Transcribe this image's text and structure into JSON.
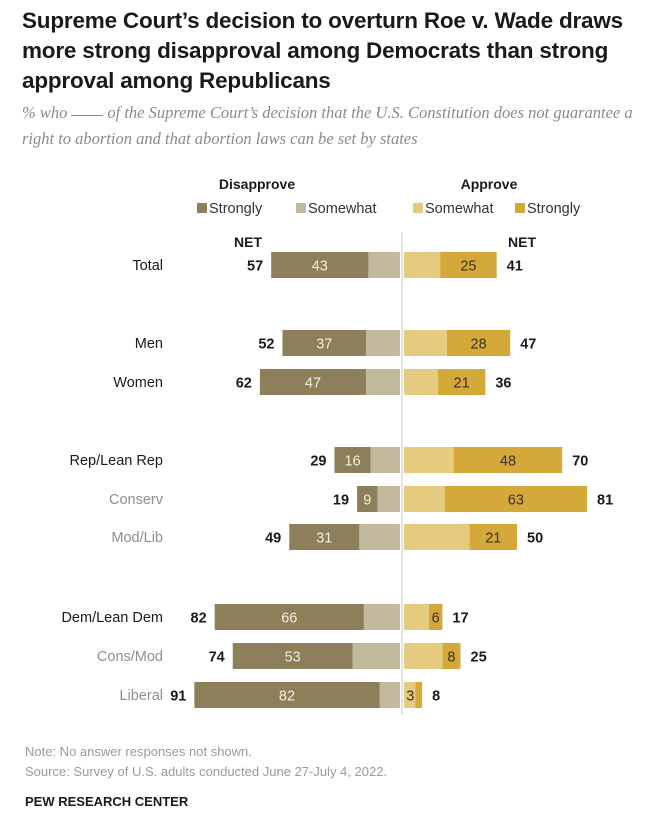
{
  "header": {
    "title": "Supreme Court’s decision to overturn Roe v. Wade draws more strong disapproval among Democrats than strong approval among Republicans",
    "subtitle_before": "% who",
    "subtitle_after": "of the Supreme Court’s decision that the U.S. Constitution does not guarantee a right to abortion and that abortion laws can be set by states"
  },
  "chart_data": {
    "type": "bar",
    "subtype": "diverging-stacked-horizontal",
    "title": "Supreme Court’s decision to overturn Roe v. Wade draws more strong disapproval among Democrats than strong approval among Republicans",
    "group_labels": {
      "left": "Disapprove",
      "right": "Approve"
    },
    "legend": [
      {
        "name": "Strongly",
        "side": "disapprove",
        "color": "#8c7f5a"
      },
      {
        "name": "Somewhat",
        "side": "disapprove",
        "color": "#c2b99c"
      },
      {
        "name": "Somewhat",
        "side": "approve",
        "color": "#e4cb7f"
      },
      {
        "name": "Strongly",
        "side": "approve",
        "color": "#d4a93a"
      }
    ],
    "legend_position": "top",
    "net_label": "NET",
    "categories": [
      "Total",
      "Men",
      "Women",
      "Rep/Lean Rep",
      "Conserv",
      "Mod/Lib",
      "Dem/Lean Dem",
      "Cons/Mod",
      "Liberal"
    ],
    "category_style": [
      "main",
      "main",
      "main",
      "main",
      "sub",
      "sub",
      "main",
      "sub",
      "sub"
    ],
    "series": [
      {
        "name": "Disapprove strongly",
        "values": [
          43,
          37,
          47,
          16,
          9,
          31,
          66,
          53,
          82
        ]
      },
      {
        "name": "Disapprove somewhat",
        "values": [
          14,
          15,
          15,
          13,
          10,
          18,
          16,
          21,
          9
        ]
      },
      {
        "name": "Approve somewhat",
        "values": [
          16,
          19,
          15,
          22,
          18,
          29,
          11,
          17,
          5
        ]
      },
      {
        "name": "Approve strongly",
        "values": [
          25,
          28,
          21,
          48,
          63,
          21,
          6,
          8,
          3
        ]
      }
    ],
    "net_disapprove": [
      57,
      52,
      62,
      29,
      19,
      49,
      82,
      74,
      91
    ],
    "net_approve": [
      41,
      47,
      36,
      70,
      81,
      50,
      17,
      25,
      8
    ],
    "xlim": [
      -100,
      100
    ]
  },
  "footer": {
    "note": "Note: No answer responses not shown.",
    "source": "Source: Survey of U.S. adults conducted June 27-July 4, 2022.",
    "brand": "PEW RESEARCH CENTER"
  }
}
